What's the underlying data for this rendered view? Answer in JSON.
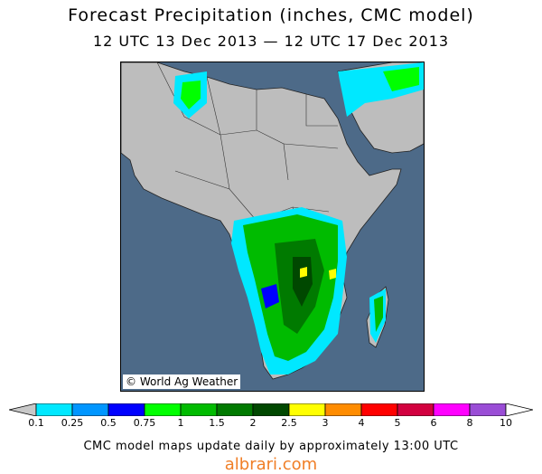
{
  "title": "Forecast Precipitation (inches, CMC model)",
  "subtitle": "12 UTC 13 Dec 2013 — 12 UTC 17 Dec 2013",
  "map": {
    "region": "Africa",
    "credit": "© World Ag Weather",
    "ocean_color": "#4d6a88",
    "land_color": "#bdbdbd"
  },
  "legend": {
    "labels": [
      "0.1",
      "0.25",
      "0.5",
      "0.75",
      "1",
      "1.5",
      "2",
      "2.5",
      "3",
      "4",
      "5",
      "6",
      "8",
      "10"
    ],
    "colors": [
      "#00e8ff",
      "#0096ff",
      "#0000ff",
      "#00ff00",
      "#00bb00",
      "#007a00",
      "#004800",
      "#ffff00",
      "#ff8c00",
      "#ff0000",
      "#d2003f",
      "#ff00ff",
      "#9a4dd6"
    ],
    "end_color": "#c8c8c8"
  },
  "footer": "CMC model maps update daily by approximately 13:00 UTC",
  "watermark": "albrari.com"
}
